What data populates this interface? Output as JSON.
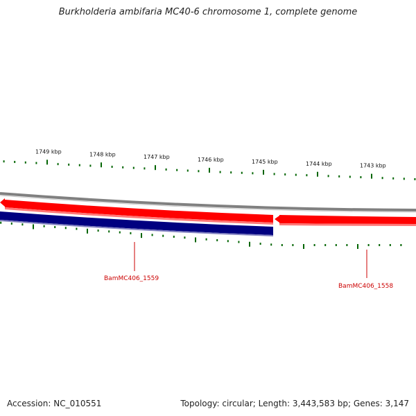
{
  "title": "Burkholderia ambifaria MC40-6 chromosome 1, complete genome",
  "ticks": [
    {
      "label": "1749 kbp",
      "pos": 1749
    },
    {
      "label": "1748 kbp",
      "pos": 1748
    },
    {
      "label": "1747 kbp",
      "pos": 1747
    },
    {
      "label": "1746 kbp",
      "pos": 1746
    },
    {
      "label": "1745 kbp",
      "pos": 1745
    },
    {
      "label": "1744 kbp",
      "pos": 1744
    },
    {
      "label": "1743 kbp",
      "pos": 1743
    }
  ],
  "genes": [
    {
      "name": "BamMC406_1559",
      "strand": "forward-red",
      "color": "#ff0000"
    },
    {
      "name": "BamMC406_1558",
      "strand": "forward-red",
      "color": "#ff0000"
    }
  ],
  "colors": {
    "red_feature": "#ff0000",
    "blue_feature": "#000080",
    "gray_backbone": "#808080",
    "tick_green": "#006400",
    "label_red": "#cc0000"
  },
  "footer": {
    "accession": "Accession: NC_010551",
    "summary": "Topology: circular; Length: 3,443,583 bp; Genes: 3,147"
  }
}
